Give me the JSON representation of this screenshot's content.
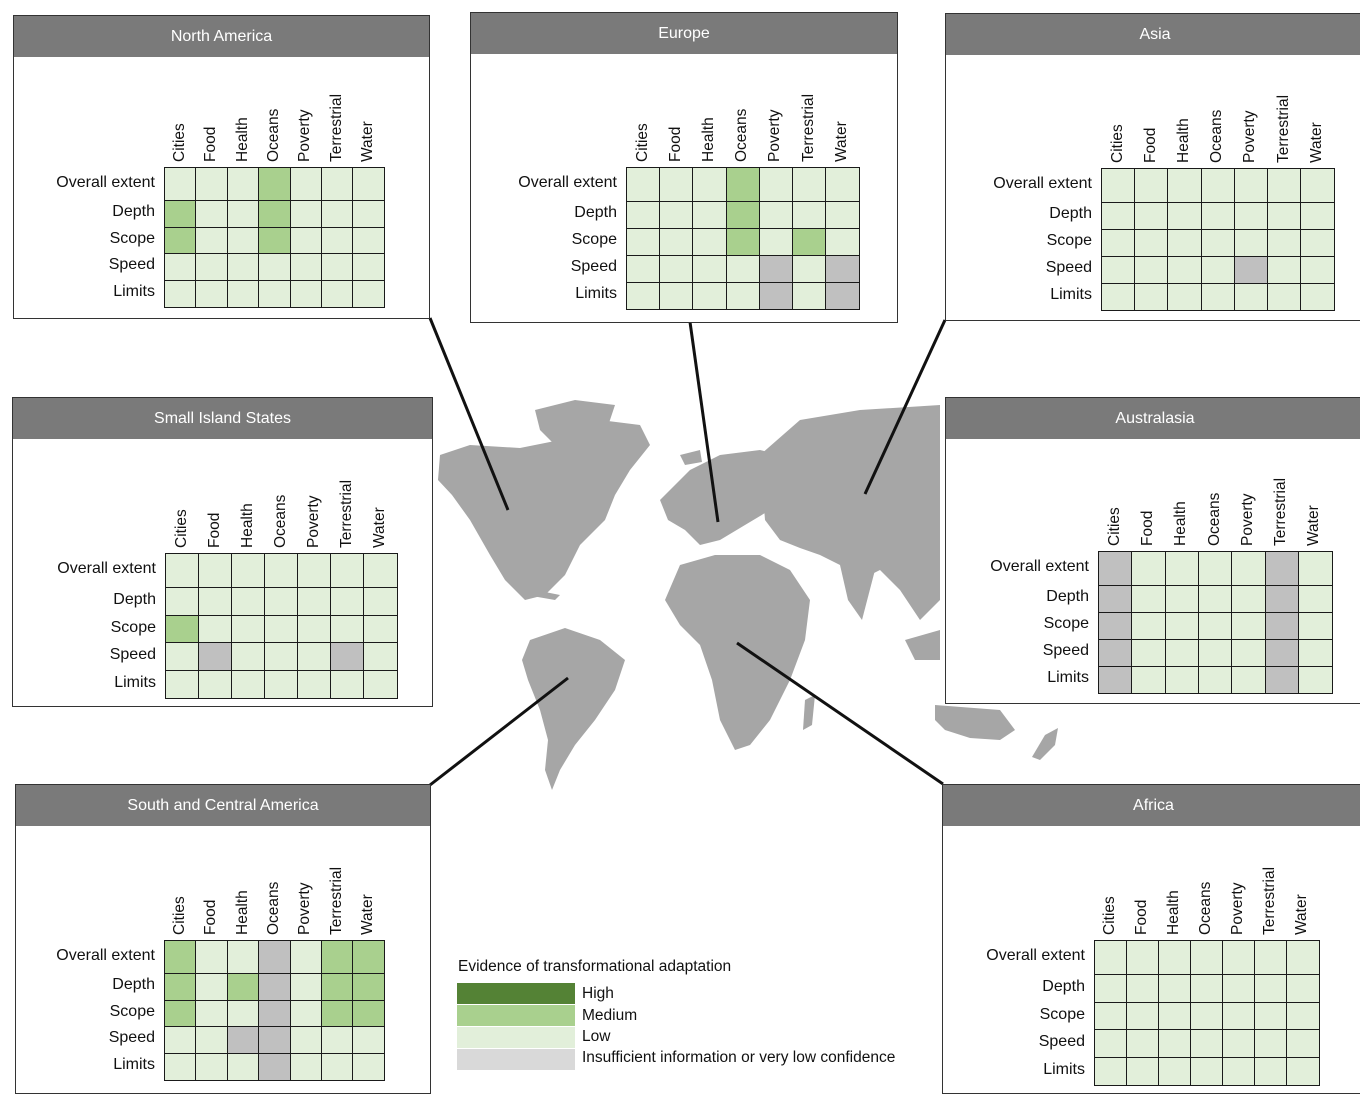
{
  "legend": {
    "title": "Evidence of transformational adaptation",
    "levels": [
      {
        "key": "H",
        "label": "High",
        "color": "#548235"
      },
      {
        "key": "M",
        "label": "Medium",
        "color": "#a9d08e"
      },
      {
        "key": "L",
        "label": "Low",
        "color": "#e2efda"
      },
      {
        "key": "I",
        "label": "Insufficient information or very low confidence",
        "color": "#d9d9d9"
      }
    ]
  },
  "grid_cell_gray": "#c0c0c0",
  "map_color": "#a6a6a6",
  "chart_data": {
    "type": "heatmap",
    "columns": [
      "Cities",
      "Food",
      "Health",
      "Oceans",
      "Poverty",
      "Terrestrial",
      "Water"
    ],
    "rows": [
      "Overall extent",
      "Depth",
      "Scope",
      "Speed",
      "Limits"
    ],
    "regions": [
      {
        "name": "North America",
        "values": [
          [
            "L",
            "L",
            "L",
            "M",
            "L",
            "L",
            "L"
          ],
          [
            "M",
            "L",
            "L",
            "M",
            "L",
            "L",
            "L"
          ],
          [
            "M",
            "L",
            "L",
            "M",
            "L",
            "L",
            "L"
          ],
          [
            "L",
            "L",
            "L",
            "L",
            "L",
            "L",
            "L"
          ],
          [
            "L",
            "L",
            "L",
            "L",
            "L",
            "L",
            "L"
          ]
        ]
      },
      {
        "name": "Europe",
        "values": [
          [
            "L",
            "L",
            "L",
            "M",
            "L",
            "L",
            "L"
          ],
          [
            "L",
            "L",
            "L",
            "M",
            "L",
            "L",
            "L"
          ],
          [
            "L",
            "L",
            "L",
            "M",
            "L",
            "M",
            "L"
          ],
          [
            "L",
            "L",
            "L",
            "L",
            "I",
            "L",
            "I"
          ],
          [
            "L",
            "L",
            "L",
            "L",
            "I",
            "L",
            "I"
          ]
        ]
      },
      {
        "name": "Asia",
        "values": [
          [
            "L",
            "L",
            "L",
            "L",
            "L",
            "L",
            "L"
          ],
          [
            "L",
            "L",
            "L",
            "L",
            "L",
            "L",
            "L"
          ],
          [
            "L",
            "L",
            "L",
            "L",
            "L",
            "L",
            "L"
          ],
          [
            "L",
            "L",
            "L",
            "L",
            "I",
            "L",
            "L"
          ],
          [
            "L",
            "L",
            "L",
            "L",
            "L",
            "L",
            "L"
          ]
        ]
      },
      {
        "name": "Small Island States",
        "values": [
          [
            "L",
            "L",
            "L",
            "L",
            "L",
            "L",
            "L"
          ],
          [
            "L",
            "L",
            "L",
            "L",
            "L",
            "L",
            "L"
          ],
          [
            "M",
            "L",
            "L",
            "L",
            "L",
            "L",
            "L"
          ],
          [
            "L",
            "I",
            "L",
            "L",
            "L",
            "I",
            "L"
          ],
          [
            "L",
            "L",
            "L",
            "L",
            "L",
            "L",
            "L"
          ]
        ]
      },
      {
        "name": "Australasia",
        "values": [
          [
            "I",
            "L",
            "L",
            "L",
            "L",
            "I",
            "L"
          ],
          [
            "I",
            "L",
            "L",
            "L",
            "L",
            "I",
            "L"
          ],
          [
            "I",
            "L",
            "L",
            "L",
            "L",
            "I",
            "L"
          ],
          [
            "I",
            "L",
            "L",
            "L",
            "L",
            "I",
            "L"
          ],
          [
            "I",
            "L",
            "L",
            "L",
            "L",
            "I",
            "L"
          ]
        ]
      },
      {
        "name": "South and Central America",
        "values": [
          [
            "M",
            "L",
            "L",
            "I",
            "L",
            "M",
            "M"
          ],
          [
            "M",
            "L",
            "M",
            "I",
            "L",
            "M",
            "M"
          ],
          [
            "M",
            "L",
            "L",
            "I",
            "L",
            "M",
            "M"
          ],
          [
            "L",
            "L",
            "I",
            "I",
            "L",
            "L",
            "L"
          ],
          [
            "L",
            "L",
            "L",
            "I",
            "L",
            "L",
            "L"
          ]
        ]
      },
      {
        "name": "Africa",
        "values": [
          [
            "L",
            "L",
            "L",
            "L",
            "L",
            "L",
            "L"
          ],
          [
            "L",
            "L",
            "L",
            "L",
            "L",
            "L",
            "L"
          ],
          [
            "L",
            "L",
            "L",
            "L",
            "L",
            "L",
            "L"
          ],
          [
            "L",
            "L",
            "L",
            "L",
            "L",
            "L",
            "L"
          ],
          [
            "L",
            "L",
            "L",
            "L",
            "L",
            "L",
            "L"
          ]
        ]
      }
    ]
  }
}
